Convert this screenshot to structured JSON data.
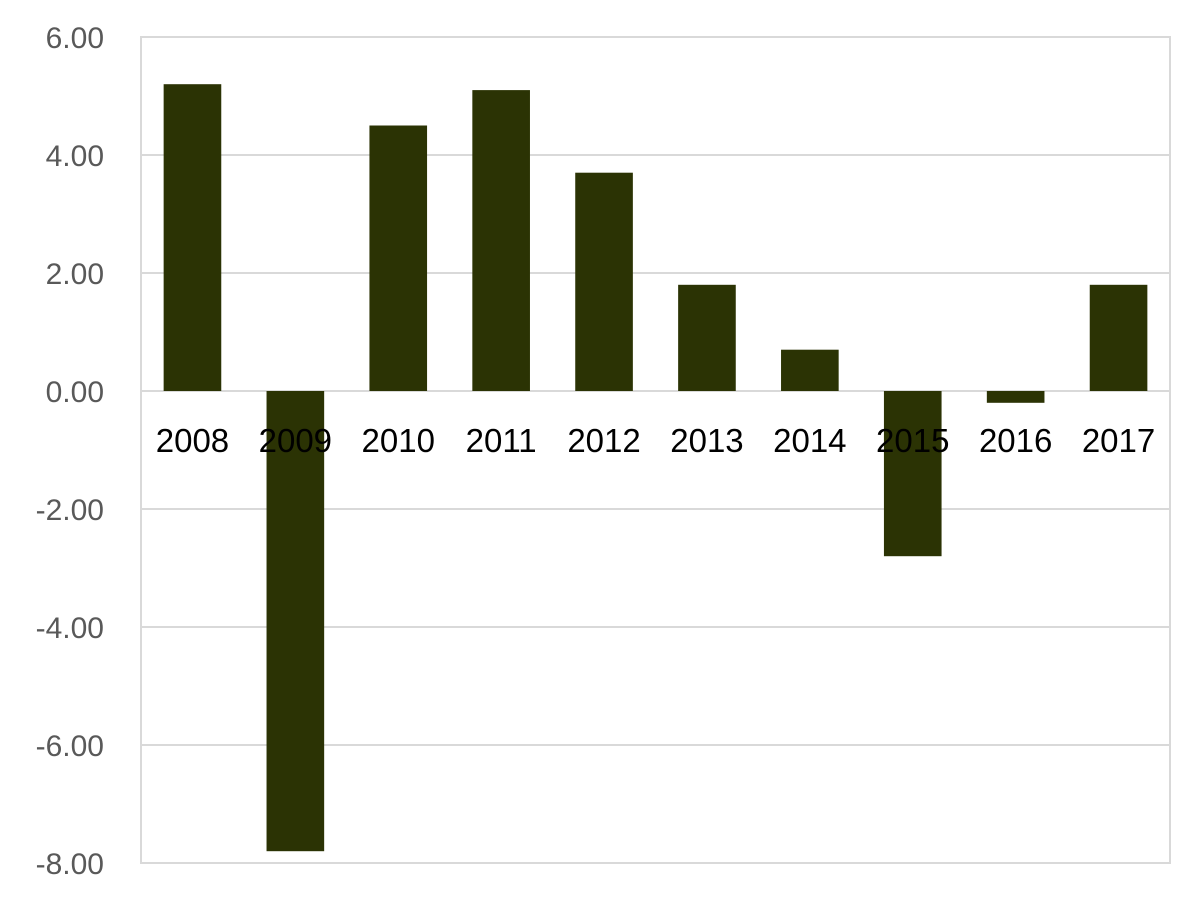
{
  "chart_data": {
    "type": "bar",
    "categories": [
      "2008",
      "2009",
      "2010",
      "2011",
      "2012",
      "2013",
      "2014",
      "2015",
      "2016",
      "2017"
    ],
    "values": [
      5.2,
      -7.8,
      4.5,
      5.1,
      3.7,
      1.8,
      0.7,
      -2.8,
      -0.2,
      1.8
    ],
    "title": "",
    "xlabel": "",
    "ylabel": "",
    "ylim": [
      -8.0,
      6.0
    ],
    "yticks": [
      "6.00",
      "4.00",
      "2.00",
      "0.00",
      "-2.00",
      "-4.00",
      "-6.00",
      "-8.00"
    ],
    "ytick_values": [
      6,
      4,
      2,
      0,
      -2,
      -4,
      -6,
      -8
    ],
    "grid": true,
    "legend": "none",
    "bar_color": "#2b3304",
    "grid_color": "#d9d9d9",
    "ytick_color": "#595959",
    "xtick_color": "#000000"
  }
}
